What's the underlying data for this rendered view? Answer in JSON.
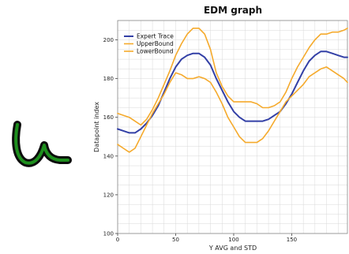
{
  "colors": {
    "expert": "#3340a6",
    "bounds": "#f5aa2c",
    "grid": "#d8d8d8",
    "thumb_green": "#1e8f1e"
  },
  "thumbnail": {
    "icon": "handwritten-u-stroke-icon"
  },
  "chart_data": {
    "type": "line",
    "title": "EDM graph",
    "xlabel": "Y AVG and STD",
    "ylabel": "Datapoint index",
    "xlim": [
      0,
      198
    ],
    "ylim": [
      100,
      210
    ],
    "x_ticks": [
      0,
      50,
      100,
      150
    ],
    "y_ticks": [
      100,
      120,
      140,
      160,
      180,
      200
    ],
    "grid": true,
    "legend": "top-left",
    "series": [
      {
        "name": "Expert Trace",
        "color": "#3340a6",
        "x": [
          0,
          5,
          10,
          15,
          20,
          25,
          30,
          35,
          40,
          45,
          50,
          55,
          60,
          65,
          70,
          75,
          80,
          85,
          90,
          95,
          100,
          105,
          110,
          115,
          120,
          125,
          130,
          135,
          140,
          145,
          150,
          155,
          160,
          165,
          170,
          175,
          180,
          185,
          190,
          195,
          198
        ],
        "y": [
          154,
          153,
          152,
          152,
          154,
          157,
          161,
          166,
          173,
          180,
          186,
          190,
          192,
          193,
          193,
          191,
          187,
          180,
          174,
          168,
          163,
          160,
          158,
          158,
          158,
          158,
          159,
          161,
          163,
          167,
          172,
          178,
          184,
          189,
          192,
          194,
          194,
          193,
          192,
          191,
          191
        ]
      },
      {
        "name": "UpperBound",
        "color": "#f5aa2c",
        "x": [
          0,
          5,
          10,
          15,
          20,
          25,
          30,
          35,
          40,
          45,
          50,
          55,
          60,
          65,
          70,
          75,
          80,
          85,
          90,
          95,
          100,
          105,
          110,
          115,
          120,
          125,
          130,
          135,
          140,
          145,
          150,
          155,
          160,
          165,
          170,
          175,
          180,
          185,
          190,
          195,
          198
        ],
        "y": [
          162,
          161,
          160,
          158,
          156,
          159,
          164,
          170,
          177,
          184,
          192,
          198,
          203,
          206,
          206,
          203,
          195,
          183,
          176,
          171,
          168,
          168,
          168,
          168,
          167,
          165,
          165,
          166,
          168,
          173,
          180,
          186,
          191,
          196,
          200,
          203,
          203,
          204,
          204,
          205,
          206
        ]
      },
      {
        "name": "LowerBound",
        "color": "#f5aa2c",
        "x": [
          0,
          5,
          10,
          15,
          20,
          25,
          30,
          35,
          40,
          45,
          50,
          55,
          60,
          65,
          70,
          75,
          80,
          85,
          90,
          95,
          100,
          105,
          110,
          115,
          120,
          125,
          130,
          135,
          140,
          145,
          150,
          155,
          160,
          165,
          170,
          175,
          180,
          185,
          190,
          195,
          198
        ],
        "y": [
          146,
          144,
          142,
          144,
          150,
          156,
          162,
          167,
          172,
          178,
          183,
          182,
          180,
          180,
          181,
          180,
          178,
          173,
          167,
          160,
          155,
          150,
          147,
          147,
          147,
          149,
          153,
          158,
          163,
          168,
          171,
          174,
          177,
          181,
          183,
          185,
          186,
          184,
          182,
          180,
          178
        ]
      }
    ]
  }
}
